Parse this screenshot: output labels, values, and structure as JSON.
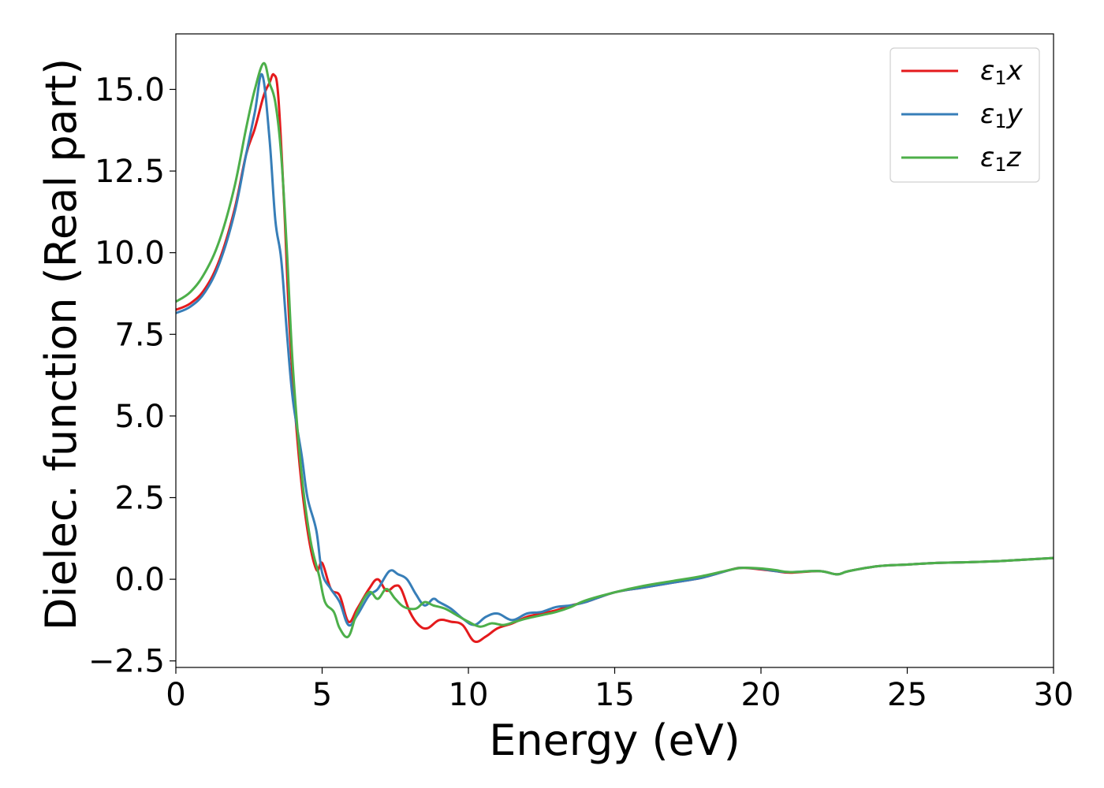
{
  "chart_data": {
    "type": "line",
    "title": "",
    "xlabel": "Energy (eV)",
    "ylabel": "Dielec. function (Real part)",
    "xlim": [
      0,
      30
    ],
    "ylim": [
      -2.7,
      16.7
    ],
    "xticks": [
      0,
      5,
      10,
      15,
      20,
      25,
      30
    ],
    "xtick_labels": [
      "0",
      "5",
      "10",
      "15",
      "20",
      "25",
      "30"
    ],
    "yticks": [
      -2.5,
      0.0,
      2.5,
      5.0,
      7.5,
      10.0,
      12.5,
      15.0
    ],
    "ytick_labels": [
      "−2.5",
      "0.0",
      "2.5",
      "5.0",
      "7.5",
      "10.0",
      "12.5",
      "15.0"
    ],
    "grid": false,
    "legend_position": "top-right",
    "series": [
      {
        "name": "ε₁x",
        "legend": {
          "base": "ε",
          "sub": "1",
          "suffix": "x"
        },
        "color": "#e41a1c",
        "x": [
          0,
          0.5,
          1.0,
          1.5,
          2.0,
          2.4,
          2.7,
          3.0,
          3.2,
          3.35,
          3.5,
          3.7,
          3.9,
          4.2,
          4.5,
          4.8,
          5.0,
          5.3,
          5.6,
          5.9,
          6.2,
          6.6,
          6.9,
          7.2,
          7.5,
          7.7,
          8.0,
          8.3,
          8.6,
          9.0,
          9.4,
          9.8,
          10.2,
          10.6,
          11.0,
          11.5,
          12.0,
          12.5,
          13.0,
          13.5,
          14.0,
          15.0,
          16.0,
          17.0,
          18.0,
          19.0,
          19.4,
          20.0,
          20.5,
          21.0,
          22.0,
          22.6,
          23.0,
          24.0,
          25.0,
          26.0,
          27.0,
          28.0,
          29.0,
          30.0
        ],
        "y": [
          8.25,
          8.45,
          8.9,
          9.8,
          11.3,
          13.0,
          13.8,
          14.8,
          15.2,
          15.45,
          14.8,
          11.5,
          7.5,
          3.8,
          1.5,
          0.3,
          0.5,
          -0.3,
          -0.5,
          -1.3,
          -0.9,
          -0.3,
          0.0,
          -0.35,
          -0.2,
          -0.3,
          -1.0,
          -1.4,
          -1.5,
          -1.25,
          -1.3,
          -1.4,
          -1.9,
          -1.75,
          -1.5,
          -1.35,
          -1.15,
          -1.05,
          -0.95,
          -0.8,
          -0.7,
          -0.4,
          -0.25,
          -0.1,
          0.05,
          0.3,
          0.35,
          0.3,
          0.25,
          0.2,
          0.25,
          0.15,
          0.25,
          0.4,
          0.45,
          0.5,
          0.52,
          0.55,
          0.6,
          0.65
        ]
      },
      {
        "name": "ε₁y",
        "legend": {
          "base": "ε",
          "sub": "1",
          "suffix": "y"
        },
        "color": "#377eb8",
        "x": [
          0,
          0.5,
          1.0,
          1.5,
          2.0,
          2.4,
          2.7,
          2.95,
          3.2,
          3.4,
          3.6,
          3.8,
          4.0,
          4.3,
          4.5,
          4.8,
          5.0,
          5.3,
          5.6,
          5.9,
          6.2,
          6.6,
          6.9,
          7.3,
          7.6,
          7.9,
          8.2,
          8.5,
          8.8,
          9.0,
          9.4,
          9.8,
          10.2,
          10.6,
          11.0,
          11.5,
          12.0,
          12.5,
          13.0,
          13.5,
          14.0,
          15.0,
          16.0,
          17.0,
          18.0,
          19.0,
          19.4,
          20.0,
          20.5,
          21.0,
          22.0,
          22.6,
          23.0,
          24.0,
          25.0,
          26.0,
          27.0,
          28.0,
          29.0,
          30.0
        ],
        "y": [
          8.15,
          8.35,
          8.8,
          9.7,
          11.2,
          13.0,
          14.3,
          15.45,
          13.5,
          11.0,
          9.8,
          7.5,
          5.5,
          3.8,
          2.5,
          1.5,
          0.2,
          -0.3,
          -0.7,
          -1.4,
          -1.1,
          -0.5,
          -0.3,
          0.25,
          0.15,
          0.0,
          -0.45,
          -0.8,
          -0.6,
          -0.7,
          -0.9,
          -1.2,
          -1.4,
          -1.15,
          -1.05,
          -1.25,
          -1.05,
          -1.0,
          -0.85,
          -0.8,
          -0.7,
          -0.4,
          -0.25,
          -0.1,
          0.05,
          0.3,
          0.35,
          0.32,
          0.25,
          0.22,
          0.25,
          0.15,
          0.25,
          0.4,
          0.45,
          0.5,
          0.52,
          0.55,
          0.6,
          0.65
        ]
      },
      {
        "name": "ε₁z",
        "legend": {
          "base": "ε",
          "sub": "1",
          "suffix": "z"
        },
        "color": "#4daf4a",
        "x": [
          0,
          0.5,
          1.0,
          1.5,
          2.0,
          2.4,
          2.7,
          3.0,
          3.2,
          3.4,
          3.6,
          3.8,
          4.0,
          4.3,
          4.6,
          4.9,
          5.1,
          5.4,
          5.6,
          5.9,
          6.2,
          6.6,
          6.9,
          7.2,
          7.5,
          7.8,
          8.2,
          8.5,
          8.8,
          9.2,
          9.6,
          10.0,
          10.4,
          10.8,
          11.2,
          11.6,
          12.0,
          12.5,
          13.0,
          13.5,
          14.0,
          15.0,
          16.0,
          17.0,
          18.0,
          19.0,
          19.4,
          20.0,
          20.5,
          21.0,
          22.0,
          22.6,
          23.0,
          24.0,
          25.0,
          26.0,
          27.0,
          28.0,
          29.0,
          30.0
        ],
        "y": [
          8.5,
          8.8,
          9.4,
          10.4,
          12.0,
          13.8,
          15.0,
          15.8,
          15.2,
          14.6,
          13.0,
          10.0,
          6.5,
          3.2,
          1.2,
          0.1,
          -0.7,
          -1.0,
          -1.5,
          -1.75,
          -1.0,
          -0.4,
          -0.6,
          -0.3,
          -0.6,
          -0.85,
          -0.9,
          -0.7,
          -0.8,
          -0.9,
          -1.1,
          -1.3,
          -1.45,
          -1.35,
          -1.4,
          -1.3,
          -1.2,
          -1.1,
          -1.0,
          -0.85,
          -0.65,
          -0.4,
          -0.2,
          -0.05,
          0.1,
          0.3,
          0.35,
          0.33,
          0.28,
          0.22,
          0.25,
          0.15,
          0.25,
          0.4,
          0.45,
          0.5,
          0.52,
          0.55,
          0.6,
          0.65
        ]
      }
    ]
  }
}
